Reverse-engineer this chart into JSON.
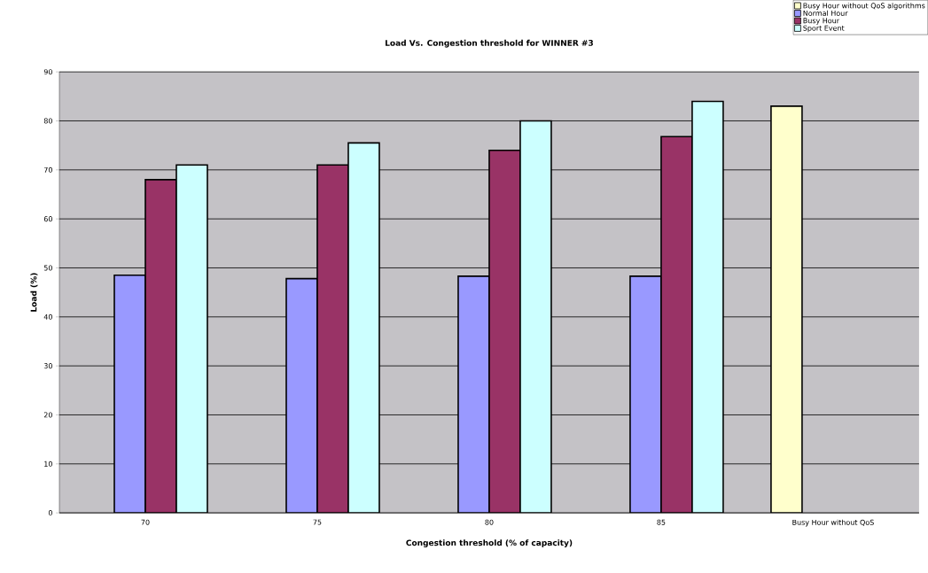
{
  "chart_data": {
    "type": "bar",
    "title": "Load Vs. Congestion threshold for WINNER #3",
    "xlabel": "Congestion threshold (% of capacity)",
    "ylabel": "Load (%)",
    "categories": [
      "70",
      "75",
      "80",
      "85",
      "Busy Hour without QoS"
    ],
    "series": [
      {
        "name": "Busy Hour without QoS algorithms",
        "color": "#ffffcc",
        "values": [
          null,
          null,
          null,
          null,
          83
        ]
      },
      {
        "name": "Normal Hour",
        "color": "#9999ff",
        "values": [
          48.5,
          47.8,
          48.3,
          48.3,
          null
        ]
      },
      {
        "name": "Busy Hour",
        "color": "#993366",
        "values": [
          68,
          71,
          74,
          76.8,
          null
        ]
      },
      {
        "name": "Sport Event",
        "color": "#ccffff",
        "values": [
          71,
          75.5,
          80,
          84,
          null
        ]
      }
    ],
    "ylim": [
      0,
      90
    ],
    "yticks": [
      0,
      10,
      20,
      30,
      40,
      50,
      60,
      70,
      80,
      90
    ],
    "grid": "y",
    "legend": "top right"
  }
}
